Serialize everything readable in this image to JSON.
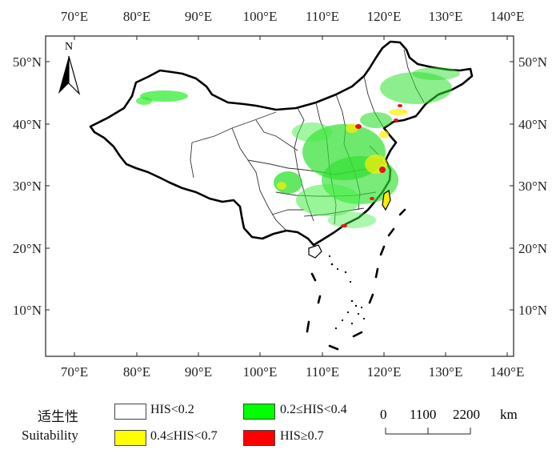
{
  "map": {
    "x_labels_top": [
      "70°E",
      "80°E",
      "90°E",
      "100°E",
      "110°E",
      "120°E",
      "130°E",
      "140°E"
    ],
    "x_labels_bottom": [
      "70°E",
      "80°E",
      "90°E",
      "100°E",
      "110°E",
      "120°E",
      "130°E",
      "140°E"
    ],
    "y_labels_left": [
      "50°N",
      "40°N",
      "30°N",
      "20°N",
      "10°N"
    ],
    "y_labels_right": [
      "50°N",
      "40°N",
      "30°N",
      "20°N",
      "10°N"
    ],
    "north_label": "N"
  },
  "legend": {
    "title_cn": "适生性",
    "title_en": "Suitability",
    "items": [
      {
        "label": "HIS<0.2",
        "color": "#ffffff"
      },
      {
        "label": "0.2≤HIS<0.4",
        "color": "#00ff00"
      },
      {
        "label": "0.4≤HIS<0.7",
        "color": "#ffff00"
      },
      {
        "label": "HIS≥0.7",
        "color": "#ff0000"
      }
    ]
  },
  "scale_bar": {
    "ticks": [
      "0",
      "1100",
      "2200"
    ],
    "unit": "km"
  }
}
